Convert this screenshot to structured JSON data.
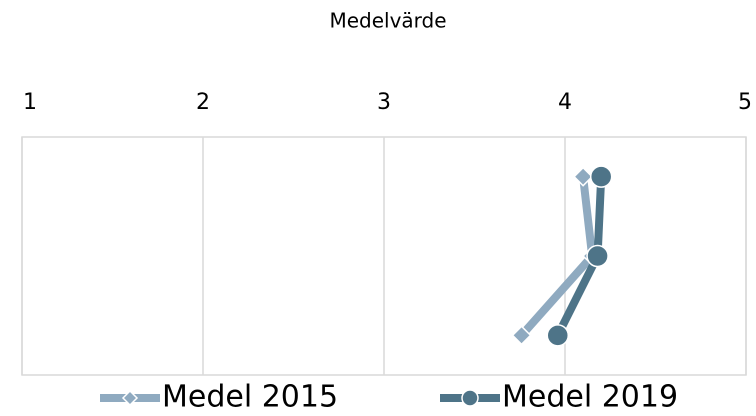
{
  "chart_data": {
    "type": "line",
    "orientation": "horizontal",
    "title": "Medelvärde",
    "categories": [
      null,
      null,
      null
    ],
    "series": [
      {
        "name": "Medel 2015",
        "color": "#8faac0",
        "marker": "diamond",
        "values": [
          4.1,
          4.15,
          3.76
        ]
      },
      {
        "name": "Medel 2019",
        "color": "#4e7488",
        "marker": "circle",
        "values": [
          4.2,
          4.18,
          3.96
        ]
      }
    ],
    "xlim": [
      1,
      5
    ],
    "xticks": [
      1,
      2,
      3,
      4,
      5
    ],
    "grid": true,
    "legend": "bottom"
  }
}
